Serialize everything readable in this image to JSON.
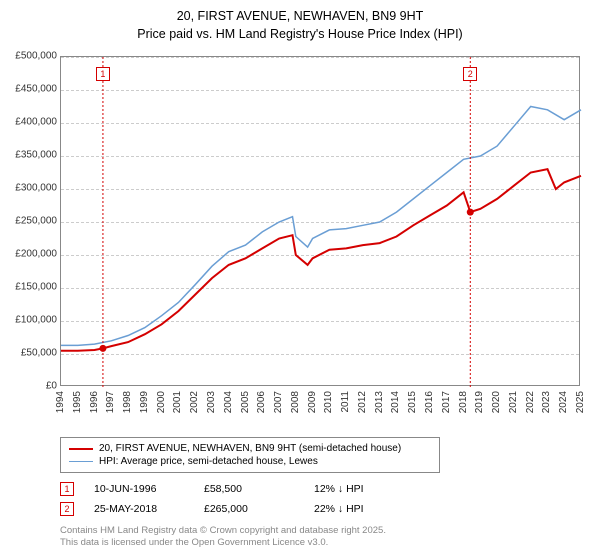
{
  "title": {
    "line1": "20, FIRST AVENUE, NEWHAVEN, BN9 9HT",
    "line2": "Price paid vs. HM Land Registry's House Price Index (HPI)"
  },
  "chart": {
    "type": "line",
    "background_color": "#ffffff",
    "border_color": "#888888",
    "grid_color": "#cccccc",
    "grid_dash": "3,3",
    "xlim": [
      1994,
      2025
    ],
    "ylim": [
      0,
      500000
    ],
    "xtick_step": 1,
    "ytick_step": 50000,
    "x_ticks": [
      "1994",
      "1995",
      "1996",
      "1997",
      "1998",
      "1999",
      "2000",
      "2001",
      "2002",
      "2003",
      "2004",
      "2005",
      "2006",
      "2007",
      "2008",
      "2009",
      "2010",
      "2011",
      "2012",
      "2013",
      "2014",
      "2015",
      "2016",
      "2017",
      "2018",
      "2019",
      "2020",
      "2021",
      "2022",
      "2023",
      "2024",
      "2025"
    ],
    "y_ticks": [
      "£0",
      "£50,000",
      "£100,000",
      "£150,000",
      "£200,000",
      "£250,000",
      "£300,000",
      "£350,000",
      "£400,000",
      "£450,000",
      "£500,000"
    ],
    "label_fontsize": 10,
    "series": [
      {
        "name": "price_paid",
        "label": "20, FIRST AVENUE, NEWHAVEN, BN9 9HT (semi-detached house)",
        "color": "#d40000",
        "line_width": 2,
        "x": [
          1994,
          1995,
          1996,
          1996.5,
          1997,
          1998,
          1999,
          2000,
          2001,
          2002,
          2003,
          2004,
          2005,
          2006,
          2007,
          2007.8,
          2008,
          2008.7,
          2009,
          2010,
          2011,
          2012,
          2013,
          2014,
          2015,
          2016,
          2017,
          2018,
          2018.4,
          2019,
          2020,
          2021,
          2022,
          2023,
          2023.5,
          2024,
          2025
        ],
        "y": [
          55000,
          55000,
          56000,
          58500,
          62000,
          68000,
          80000,
          95000,
          115000,
          140000,
          165000,
          185000,
          195000,
          210000,
          225000,
          230000,
          200000,
          185000,
          195000,
          208000,
          210000,
          215000,
          218000,
          228000,
          245000,
          260000,
          275000,
          295000,
          265000,
          270000,
          285000,
          305000,
          325000,
          330000,
          300000,
          310000,
          320000
        ]
      },
      {
        "name": "hpi",
        "label": "HPI: Average price, semi-detached house, Lewes",
        "color": "#6a9ed4",
        "line_width": 1.5,
        "x": [
          1994,
          1995,
          1996,
          1997,
          1998,
          1999,
          2000,
          2001,
          2002,
          2003,
          2004,
          2005,
          2006,
          2007,
          2007.8,
          2008,
          2008.7,
          2009,
          2010,
          2011,
          2012,
          2013,
          2014,
          2015,
          2016,
          2017,
          2018,
          2019,
          2020,
          2021,
          2022,
          2023,
          2024,
          2025
        ],
        "y": [
          63000,
          63000,
          65000,
          70000,
          78000,
          90000,
          108000,
          128000,
          155000,
          183000,
          205000,
          215000,
          235000,
          250000,
          258000,
          228000,
          212000,
          225000,
          238000,
          240000,
          245000,
          250000,
          265000,
          285000,
          305000,
          325000,
          345000,
          350000,
          365000,
          395000,
          425000,
          420000,
          405000,
          420000
        ]
      }
    ],
    "markers": [
      {
        "id": "1",
        "x": 1996.5,
        "y": 58500,
        "color": "#d40000"
      },
      {
        "id": "2",
        "x": 2018.4,
        "y": 265000,
        "color": "#d40000"
      }
    ],
    "marker_box_top_y": 10
  },
  "legend": {
    "border_color": "#888888",
    "items": [
      {
        "color": "#d40000",
        "thickness": 2,
        "text": "20, FIRST AVENUE, NEWHAVEN, BN9 9HT (semi-detached house)"
      },
      {
        "color": "#6a9ed4",
        "thickness": 1.5,
        "text": "HPI: Average price, semi-detached house, Lewes"
      }
    ]
  },
  "sales": [
    {
      "id": "1",
      "color": "#d40000",
      "date": "10-JUN-1996",
      "price": "£58,500",
      "diff": "12% ↓ HPI"
    },
    {
      "id": "2",
      "color": "#d40000",
      "date": "25-MAY-2018",
      "price": "£265,000",
      "diff": "22% ↓ HPI"
    }
  ],
  "footer": {
    "line1": "Contains HM Land Registry data © Crown copyright and database right 2025.",
    "line2": "This data is licensed under the Open Government Licence v3.0."
  }
}
